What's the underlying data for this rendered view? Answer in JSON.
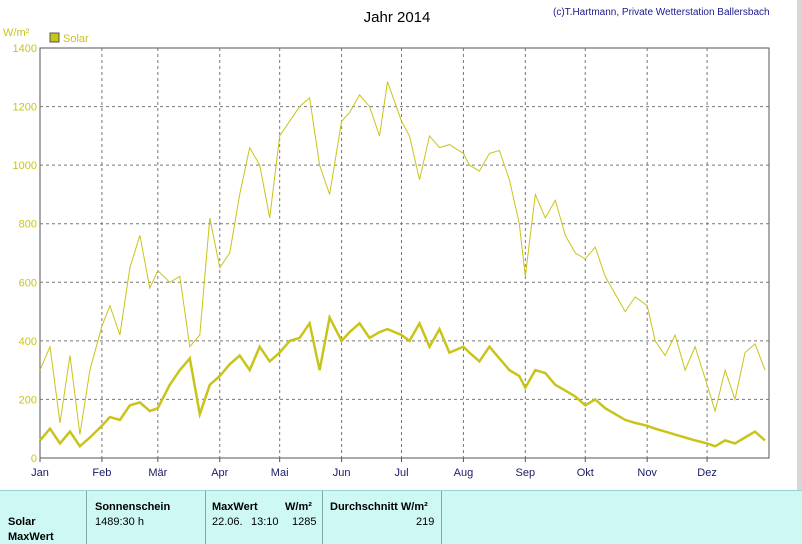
{
  "chart_data": {
    "type": "line",
    "title": "Jahr 2014",
    "credit": "(c)T.Hartmann, Private Wetterstation Ballersbach",
    "ylabel": "W/m²",
    "ylim": [
      0,
      1400
    ],
    "yticks": [
      0,
      200,
      400,
      600,
      800,
      1000,
      1200,
      1400
    ],
    "xlim": [
      0,
      365
    ],
    "x_tick_labels": [
      "Jan",
      "Feb",
      "Mär",
      "Apr",
      "Mai",
      "Jun",
      "Jul",
      "Aug",
      "Sep",
      "Okt",
      "Nov",
      "Dez"
    ],
    "x_tick_days": [
      0,
      31,
      59,
      90,
      120,
      151,
      181,
      212,
      243,
      273,
      304,
      334
    ],
    "grid": true,
    "legend": "top-left",
    "series": [
      {
        "name": "Solar",
        "color": "#c9c41a",
        "description_of_lines": "daily maximum (thin) and daily mean (thick)",
        "daily_max_samples": [
          [
            0,
            300
          ],
          [
            5,
            380
          ],
          [
            10,
            120
          ],
          [
            15,
            350
          ],
          [
            20,
            80
          ],
          [
            25,
            300
          ],
          [
            31,
            450
          ],
          [
            35,
            520
          ],
          [
            40,
            420
          ],
          [
            45,
            650
          ],
          [
            50,
            760
          ],
          [
            55,
            580
          ],
          [
            59,
            640
          ],
          [
            65,
            600
          ],
          [
            70,
            620
          ],
          [
            75,
            380
          ],
          [
            80,
            420
          ],
          [
            85,
            820
          ],
          [
            90,
            650
          ],
          [
            95,
            700
          ],
          [
            100,
            900
          ],
          [
            105,
            1060
          ],
          [
            110,
            1000
          ],
          [
            115,
            820
          ],
          [
            120,
            1100
          ],
          [
            125,
            1150
          ],
          [
            130,
            1200
          ],
          [
            135,
            1230
          ],
          [
            140,
            1000
          ],
          [
            145,
            900
          ],
          [
            151,
            1150
          ],
          [
            155,
            1180
          ],
          [
            160,
            1240
          ],
          [
            165,
            1200
          ],
          [
            170,
            1100
          ],
          [
            174,
            1285
          ],
          [
            181,
            1150
          ],
          [
            185,
            1100
          ],
          [
            190,
            950
          ],
          [
            195,
            1100
          ],
          [
            200,
            1060
          ],
          [
            205,
            1070
          ],
          [
            212,
            1040
          ],
          [
            215,
            1000
          ],
          [
            220,
            980
          ],
          [
            225,
            1040
          ],
          [
            230,
            1050
          ],
          [
            235,
            950
          ],
          [
            240,
            800
          ],
          [
            243,
            620
          ],
          [
            248,
            900
          ],
          [
            253,
            820
          ],
          [
            258,
            880
          ],
          [
            263,
            760
          ],
          [
            268,
            700
          ],
          [
            273,
            680
          ],
          [
            278,
            720
          ],
          [
            283,
            620
          ],
          [
            288,
            560
          ],
          [
            293,
            500
          ],
          [
            298,
            550
          ],
          [
            304,
            520
          ],
          [
            308,
            400
          ],
          [
            313,
            350
          ],
          [
            318,
            420
          ],
          [
            323,
            300
          ],
          [
            328,
            380
          ],
          [
            334,
            250
          ],
          [
            338,
            160
          ],
          [
            343,
            300
          ],
          [
            348,
            200
          ],
          [
            353,
            360
          ],
          [
            358,
            390
          ],
          [
            363,
            300
          ]
        ],
        "daily_mean_samples": [
          [
            0,
            60
          ],
          [
            5,
            100
          ],
          [
            10,
            50
          ],
          [
            15,
            90
          ],
          [
            20,
            40
          ],
          [
            25,
            70
          ],
          [
            31,
            110
          ],
          [
            35,
            140
          ],
          [
            40,
            130
          ],
          [
            45,
            180
          ],
          [
            50,
            190
          ],
          [
            55,
            160
          ],
          [
            59,
            170
          ],
          [
            65,
            250
          ],
          [
            70,
            300
          ],
          [
            75,
            340
          ],
          [
            80,
            150
          ],
          [
            85,
            250
          ],
          [
            90,
            280
          ],
          [
            95,
            320
          ],
          [
            100,
            350
          ],
          [
            105,
            300
          ],
          [
            110,
            380
          ],
          [
            115,
            330
          ],
          [
            120,
            360
          ],
          [
            125,
            400
          ],
          [
            130,
            410
          ],
          [
            135,
            460
          ],
          [
            140,
            300
          ],
          [
            145,
            480
          ],
          [
            151,
            400
          ],
          [
            155,
            430
          ],
          [
            160,
            460
          ],
          [
            165,
            410
          ],
          [
            170,
            430
          ],
          [
            174,
            440
          ],
          [
            181,
            420
          ],
          [
            185,
            400
          ],
          [
            190,
            460
          ],
          [
            195,
            380
          ],
          [
            200,
            440
          ],
          [
            205,
            360
          ],
          [
            212,
            380
          ],
          [
            215,
            360
          ],
          [
            220,
            330
          ],
          [
            225,
            380
          ],
          [
            230,
            340
          ],
          [
            235,
            300
          ],
          [
            240,
            280
          ],
          [
            243,
            240
          ],
          [
            248,
            300
          ],
          [
            253,
            290
          ],
          [
            258,
            250
          ],
          [
            263,
            230
          ],
          [
            268,
            210
          ],
          [
            273,
            180
          ],
          [
            278,
            200
          ],
          [
            283,
            170
          ],
          [
            288,
            150
          ],
          [
            293,
            130
          ],
          [
            298,
            120
          ],
          [
            304,
            110
          ],
          [
            308,
            100
          ],
          [
            313,
            90
          ],
          [
            318,
            80
          ],
          [
            323,
            70
          ],
          [
            328,
            60
          ],
          [
            334,
            50
          ],
          [
            338,
            40
          ],
          [
            343,
            60
          ],
          [
            348,
            50
          ],
          [
            353,
            70
          ],
          [
            358,
            90
          ],
          [
            363,
            60
          ]
        ]
      }
    ]
  },
  "stats": {
    "headers": {
      "sunshine": "Sonnenschein",
      "maxwert": "MaxWert",
      "maxwert_unit": "W/m²",
      "avg": "Durchschnitt W/m²"
    },
    "rows": {
      "solar": "Solar",
      "maxwert": "MaxWert"
    },
    "values": {
      "sunshine": "1489:30 h",
      "max_date": "22.06.",
      "max_time": "13:10",
      "max_value": "1285",
      "avg_value": "219"
    }
  }
}
